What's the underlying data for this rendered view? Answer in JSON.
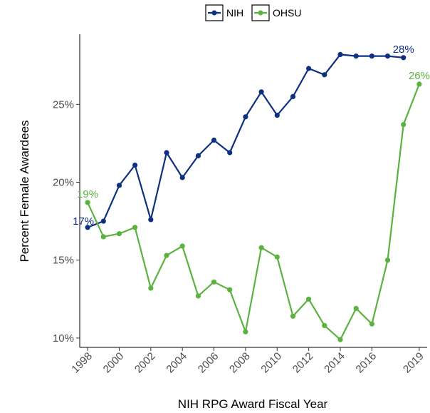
{
  "chart_data": {
    "type": "line",
    "xlabel": "NIH RPG Award Fiscal Year",
    "ylabel": "Percent Female Awardees",
    "x": [
      1998,
      1999,
      2000,
      2001,
      2002,
      2003,
      2004,
      2005,
      2006,
      2007,
      2008,
      2009,
      2010,
      2011,
      2012,
      2013,
      2014,
      2015,
      2016,
      2017,
      2018,
      2019
    ],
    "xlim": [
      1997.5,
      2019.5
    ],
    "x_ticks": [
      1998,
      2000,
      2002,
      2004,
      2006,
      2008,
      2010,
      2012,
      2014,
      2016,
      2019
    ],
    "x_tick_labels": [
      "1998",
      "2000",
      "2002",
      "2004",
      "2006",
      "2008",
      "2010",
      "2012",
      "2014",
      "2016",
      "2019"
    ],
    "ylim": [
      9.4,
      29.5
    ],
    "y_ticks": [
      10,
      15,
      20,
      25
    ],
    "y_tick_labels": [
      "10%",
      "15%",
      "20%",
      "25%"
    ],
    "grid": false,
    "legend_position": "top",
    "series": [
      {
        "name": "NIH",
        "color": "#0d3180",
        "x": [
          1998,
          1999,
          2000,
          2001,
          2002,
          2003,
          2004,
          2005,
          2006,
          2007,
          2008,
          2009,
          2010,
          2011,
          2012,
          2013,
          2014,
          2015,
          2016,
          2017,
          2018
        ],
        "values": [
          17.1,
          17.5,
          19.8,
          21.1,
          17.6,
          21.9,
          20.3,
          21.7,
          22.7,
          21.9,
          24.2,
          25.8,
          24.3,
          25.5,
          27.3,
          26.9,
          28.2,
          28.1,
          28.1,
          28.1,
          28.0
        ],
        "labels": [
          {
            "x": 1998,
            "text": "17%",
            "side": "left"
          },
          {
            "x": 2018,
            "text": "28%",
            "side": "above"
          }
        ]
      },
      {
        "name": "OHSU",
        "color": "#5ab341",
        "x": [
          1998,
          1999,
          2000,
          2001,
          2002,
          2003,
          2004,
          2005,
          2006,
          2007,
          2008,
          2009,
          2010,
          2011,
          2012,
          2013,
          2014,
          2015,
          2016,
          2017,
          2018,
          2019
        ],
        "values": [
          18.7,
          16.5,
          16.7,
          17.1,
          13.2,
          15.3,
          15.9,
          12.7,
          13.6,
          13.1,
          10.4,
          15.8,
          15.2,
          11.4,
          12.5,
          10.8,
          9.9,
          11.9,
          10.9,
          15.0,
          23.7,
          26.3
        ],
        "labels": [
          {
            "x": 1998,
            "text": "19%",
            "side": "above"
          },
          {
            "x": 2019,
            "text": "26%",
            "side": "above"
          }
        ]
      }
    ]
  }
}
